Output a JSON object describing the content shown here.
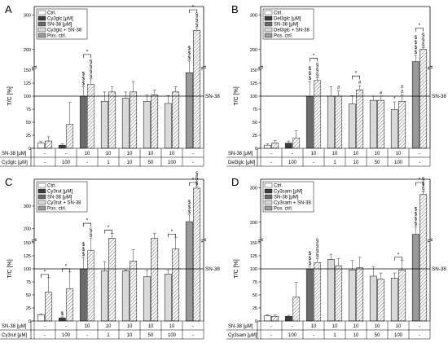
{
  "colors": {
    "ctrl": "#ffffff",
    "compound": "#3d3d3d",
    "sn38": "#6b6b6b",
    "combo": "#dadada",
    "posctrl": "#9a9a9a",
    "hatch_bg": "#ffffff",
    "hatch_line": "#555555"
  },
  "chart_data": [
    {
      "type": "bar",
      "panel_letter": "A",
      "ylabel": "T/C [%]",
      "ref_line": {
        "y": 100,
        "label": "SN-38"
      },
      "yaxis": {
        "ticks": [
          0,
          25,
          50,
          75,
          100,
          125,
          150
        ],
        "upper_ticks": [
          200,
          300
        ],
        "break_at": 150
      },
      "legend": [
        "Ctrl.",
        "Cy3glc [μM]",
        "SN-38 [μM]",
        "Cy3glc + SN-38",
        "Pos. ctrl."
      ],
      "row_labels": [
        "SN-38 [μM]",
        "Cy3glc [μM]"
      ],
      "groups": [
        {
          "row1": "-",
          "row2": "-",
          "bars": [
            {
              "type": "ctrl",
              "value": 10,
              "err": 3
            },
            {
              "type": "ctrl",
              "hatched": true,
              "value": 14,
              "err": 8
            }
          ]
        },
        {
          "row1": "-",
          "row2": "100",
          "bars": [
            {
              "type": "compound",
              "value": 6,
              "err": 3
            },
            {
              "type": "compound",
              "hatched": true,
              "value": 46,
              "err": 42
            }
          ]
        },
        {
          "row1": "10",
          "row2": "-",
          "bars": [
            {
              "type": "sn38",
              "value": 100,
              "err": 18,
              "sig": "$\n$\n$"
            },
            {
              "type": "sn38",
              "hatched": true,
              "value": 123,
              "err": 10,
              "sig": "§\n§\n§\n§"
            }
          ],
          "bracket": "*"
        },
        {
          "row1": "10",
          "row2": "1",
          "bars": [
            {
              "type": "combo",
              "value": 90,
              "err": 18
            },
            {
              "type": "combo",
              "hatched": true,
              "value": 108,
              "err": 10
            }
          ]
        },
        {
          "row1": "10",
          "row2": "10",
          "bars": [
            {
              "type": "combo",
              "value": 96,
              "err": 12
            },
            {
              "type": "combo",
              "hatched": true,
              "value": 108,
              "err": 20
            }
          ]
        },
        {
          "row1": "10",
          "row2": "50",
          "bars": [
            {
              "type": "combo",
              "value": 90,
              "err": 12
            },
            {
              "type": "combo",
              "hatched": true,
              "value": 102,
              "err": 10
            }
          ]
        },
        {
          "row1": "10",
          "row2": "100",
          "bars": [
            {
              "type": "combo",
              "value": 86,
              "err": 15
            },
            {
              "type": "combo",
              "hatched": true,
              "value": 108,
              "err": 10
            }
          ]
        },
        {
          "row1": "-",
          "row2": "-",
          "bars": [
            {
              "type": "posctrl",
              "value": 145,
              "err": 22,
              "sig": "$\n$\n$"
            },
            {
              "type": "posctrl",
              "hatched": true,
              "value": 255,
              "err": 8,
              "sig": "§\n§\n§"
            }
          ],
          "bracket": "*"
        }
      ]
    },
    {
      "type": "bar",
      "panel_letter": "B",
      "ylabel": "T/C [%]",
      "ref_line": {
        "y": 100,
        "label": "SN-38"
      },
      "yaxis": {
        "ticks": [
          0,
          25,
          50,
          75,
          100,
          125,
          150
        ],
        "upper_ticks": [
          200,
          300
        ],
        "break_at": 150
      },
      "legend": [
        "Ctrl.",
        "Del3glc [μM]",
        "SN-38 [μM]",
        "Del3glc + SN-38",
        "Pos. ctrl."
      ],
      "row_labels": [
        "SN-38 [μM]",
        "Del3glc [μM]"
      ],
      "groups": [
        {
          "row1": "-",
          "row2": "-",
          "bars": [
            {
              "type": "ctrl",
              "value": 6,
              "err": 3
            },
            {
              "type": "ctrl",
              "hatched": true,
              "value": 10,
              "err": 5
            }
          ]
        },
        {
          "row1": "-",
          "row2": "100",
          "bars": [
            {
              "type": "compound",
              "value": 10,
              "err": 4
            },
            {
              "type": "compound",
              "hatched": true,
              "value": 20,
              "err": 14
            }
          ]
        },
        {
          "row1": "10",
          "row2": "-",
          "bars": [
            {
              "type": "sn38",
              "value": 100,
              "err": 28,
              "sig": "$\n$\n$"
            },
            {
              "type": "sn38",
              "hatched": true,
              "value": 130,
              "err": 5,
              "sig": "§\n§\n§"
            }
          ],
          "bracket": "*"
        },
        {
          "row1": "10",
          "row2": "1",
          "bars": [
            {
              "type": "combo",
              "value": 100,
              "err": 18
            },
            {
              "type": "combo",
              "hatched": true,
              "value": 100,
              "err": 10,
              "sig": "#"
            }
          ]
        },
        {
          "row1": "10",
          "row2": "10",
          "bars": [
            {
              "type": "combo",
              "value": 85,
              "err": 16
            },
            {
              "type": "combo",
              "hatched": true,
              "value": 112,
              "err": 8,
              "sig": "#"
            }
          ],
          "bracket": "*"
        },
        {
          "row1": "10",
          "row2": "50",
          "bars": [
            {
              "type": "combo",
              "value": 92,
              "err": 8
            },
            {
              "type": "combo",
              "hatched": true,
              "value": 92,
              "err": 8,
              "sig": "#"
            }
          ]
        },
        {
          "row1": "10",
          "row2": "100",
          "bars": [
            {
              "type": "combo",
              "value": 74,
              "err": 15,
              "sig": "*"
            },
            {
              "type": "combo",
              "hatched": true,
              "value": 90,
              "err": 12,
              "sig": "#\n#"
            }
          ]
        },
        {
          "row1": "-",
          "row2": "-",
          "bars": [
            {
              "type": "posctrl",
              "value": 165,
              "err": 18,
              "sig": "$\n$\n$\n$"
            },
            {
              "type": "posctrl",
              "hatched": true,
              "value": 200,
              "err": 5,
              "sig": "§\n§\n§"
            }
          ],
          "bracket": "*"
        }
      ]
    },
    {
      "type": "bar",
      "panel_letter": "C",
      "ylabel": "T/C [%]",
      "ref_line": {
        "y": 100,
        "label": "SN-38"
      },
      "yaxis": {
        "ticks": [
          0,
          25,
          50,
          75,
          100,
          125,
          150
        ],
        "upper_ticks": [
          200,
          300
        ],
        "break_at": 150
      },
      "legend": [
        "Ctrl.",
        "Cy3rut [μM]",
        "SN-38 [μM]",
        "Cy3rut + SN-38",
        "Pos. ctrl."
      ],
      "row_labels": [
        "SN-38 [μM]",
        "Cy3rut [μM]"
      ],
      "groups": [
        {
          "row1": "-",
          "row2": "-",
          "bars": [
            {
              "type": "ctrl",
              "value": 12,
              "err": 2
            },
            {
              "type": "ctrl",
              "hatched": true,
              "value": 55,
              "err": 28
            }
          ],
          "bracket": "*"
        },
        {
          "row1": "-",
          "row2": "100",
          "bars": [
            {
              "type": "compound",
              "value": 6,
              "err": 2,
              "sig": "$"
            },
            {
              "type": "compound",
              "hatched": true,
              "value": 62,
              "err": 32
            }
          ],
          "bracket": "*"
        },
        {
          "row1": "10",
          "row2": "-",
          "bars": [
            {
              "type": "sn38",
              "value": 100,
              "err": 22,
              "sig": "$\n$\n$"
            },
            {
              "type": "sn38",
              "hatched": true,
              "value": 135,
              "err": 22,
              "sig": "§\n§"
            }
          ],
          "bracket": "*"
        },
        {
          "row1": "10",
          "row2": "1",
          "bars": [
            {
              "type": "combo",
              "value": 96,
              "err": 18
            },
            {
              "type": "combo",
              "hatched": true,
              "value": 155,
              "err": 22
            }
          ],
          "bracket": "*"
        },
        {
          "row1": "10",
          "row2": "10",
          "bars": [
            {
              "type": "combo",
              "value": 96,
              "err": 2
            },
            {
              "type": "combo",
              "hatched": true,
              "value": 115,
              "err": 22
            }
          ]
        },
        {
          "row1": "10",
          "row2": "50",
          "bars": [
            {
              "type": "combo",
              "value": 85,
              "err": 12
            },
            {
              "type": "combo",
              "hatched": true,
              "value": 155,
              "err": 22
            }
          ]
        },
        {
          "row1": "10",
          "row2": "100",
          "bars": [
            {
              "type": "combo",
              "value": 90,
              "err": 8
            },
            {
              "type": "combo",
              "hatched": true,
              "value": 138,
              "err": 22
            }
          ],
          "bracket": "*"
        },
        {
          "row1": "-",
          "row2": "-",
          "bars": [
            {
              "type": "posctrl",
              "value": 230,
              "err": 30,
              "sig": "$\n$\n$"
            },
            {
              "type": "posctrl",
              "hatched": true,
              "value": 380,
              "err": 8,
              "sig": "§\n§\n§"
            }
          ],
          "bracket": "*"
        }
      ]
    },
    {
      "type": "bar",
      "panel_letter": "D",
      "ylabel": "T/C [%]",
      "ref_line": {
        "y": 100,
        "label": "SN-38"
      },
      "yaxis": {
        "ticks": [
          0,
          25,
          50,
          75,
          100,
          125,
          150
        ],
        "upper_ticks": [
          200,
          300
        ],
        "break_at": 150
      },
      "legend": [
        "Ctrl.",
        "Cy3sam [μM]",
        "SN-38 [μM]",
        "Cy3sam + SN-38",
        "Pos. ctrl."
      ],
      "row_labels": [
        "SN-38 [μM]",
        "Cy3sam [μM]"
      ],
      "groups": [
        {
          "row1": "-",
          "row2": "-",
          "bars": [
            {
              "type": "ctrl",
              "value": 10,
              "err": 2
            },
            {
              "type": "ctrl",
              "hatched": true,
              "value": 9,
              "err": 3
            }
          ]
        },
        {
          "row1": "-",
          "row2": "100",
          "bars": [
            {
              "type": "compound",
              "value": 9,
              "err": 2
            },
            {
              "type": "compound",
              "hatched": true,
              "value": 46,
              "err": 28
            }
          ]
        },
        {
          "row1": "10",
          "row2": "-",
          "bars": [
            {
              "type": "sn38",
              "value": 100,
              "err": 5,
              "sig": "$\n$\n$"
            },
            {
              "type": "sn38",
              "hatched": true,
              "value": 112,
              "err": 8,
              "sig": "§\n§\n§\n§"
            }
          ]
        },
        {
          "row1": "10",
          "row2": "1",
          "bars": [
            {
              "type": "combo",
              "value": 118,
              "err": 10
            },
            {
              "type": "combo",
              "hatched": true,
              "value": 106,
              "err": 14
            }
          ]
        },
        {
          "row1": "10",
          "row2": "10",
          "bars": [
            {
              "type": "combo",
              "value": 98,
              "err": 18
            },
            {
              "type": "combo",
              "hatched": true,
              "value": 102,
              "err": 20
            }
          ]
        },
        {
          "row1": "10",
          "row2": "50",
          "bars": [
            {
              "type": "combo",
              "value": 86,
              "err": 18
            },
            {
              "type": "combo",
              "hatched": true,
              "value": 80,
              "err": 12
            }
          ]
        },
        {
          "row1": "10",
          "row2": "100",
          "bars": [
            {
              "type": "combo",
              "value": 82,
              "err": 10
            },
            {
              "type": "combo",
              "hatched": true,
              "value": 98,
              "err": 18
            }
          ],
          "bracket": "*"
        },
        {
          "row1": "-",
          "row2": "-",
          "bars": [
            {
              "type": "posctrl",
              "value": 165,
              "err": 22,
              "sig": "$\n$\n$\n$"
            },
            {
              "type": "posctrl",
              "hatched": true,
              "value": 280,
              "err": 8,
              "sig": "§\n§\n§"
            }
          ],
          "bracket": "*"
        }
      ]
    }
  ]
}
